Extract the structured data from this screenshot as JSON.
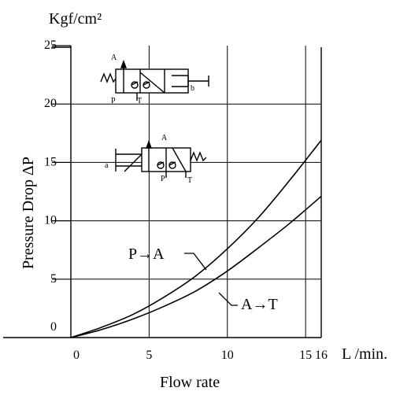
{
  "chart_data": {
    "type": "line",
    "title": "",
    "y_unit": "Kgf/cm²",
    "ylabel": "Pressure Drop ΔP",
    "x_unit": "L /min.",
    "xlabel": "Flow rate",
    "xlim": [
      0,
      16
    ],
    "ylim": [
      0,
      25
    ],
    "x_ticks": [
      0,
      5,
      10,
      15,
      16
    ],
    "x_tick_labels": [
      "0",
      "5",
      "10",
      "15",
      "16"
    ],
    "y_ticks": [
      0,
      5,
      10,
      15,
      20,
      25
    ],
    "y_tick_labels": [
      "0",
      "5",
      "10",
      "15",
      "20",
      "25"
    ],
    "grid": true,
    "series": [
      {
        "name": "P→A",
        "points": [
          [
            0,
            0
          ],
          [
            2,
            0.9
          ],
          [
            4,
            2.0
          ],
          [
            6,
            3.5
          ],
          [
            8,
            5.3
          ],
          [
            10,
            7.6
          ],
          [
            12,
            10.3
          ],
          [
            14,
            13.5
          ],
          [
            16,
            16.9
          ]
        ]
      },
      {
        "name": "A→T",
        "points": [
          [
            0,
            0
          ],
          [
            2,
            0.7
          ],
          [
            4,
            1.6
          ],
          [
            6,
            2.7
          ],
          [
            8,
            4.0
          ],
          [
            10,
            5.7
          ],
          [
            12,
            7.7
          ],
          [
            14,
            9.8
          ],
          [
            16,
            12.1
          ]
        ]
      }
    ],
    "labels": {
      "pa": "P→A",
      "at": "A→T"
    },
    "valve_symbol_1": {
      "A": "A",
      "P": "P",
      "T": "T",
      "b": "b"
    },
    "valve_symbol_2": {
      "A": "A",
      "P": "P",
      "T": "T",
      "a": "a"
    }
  }
}
